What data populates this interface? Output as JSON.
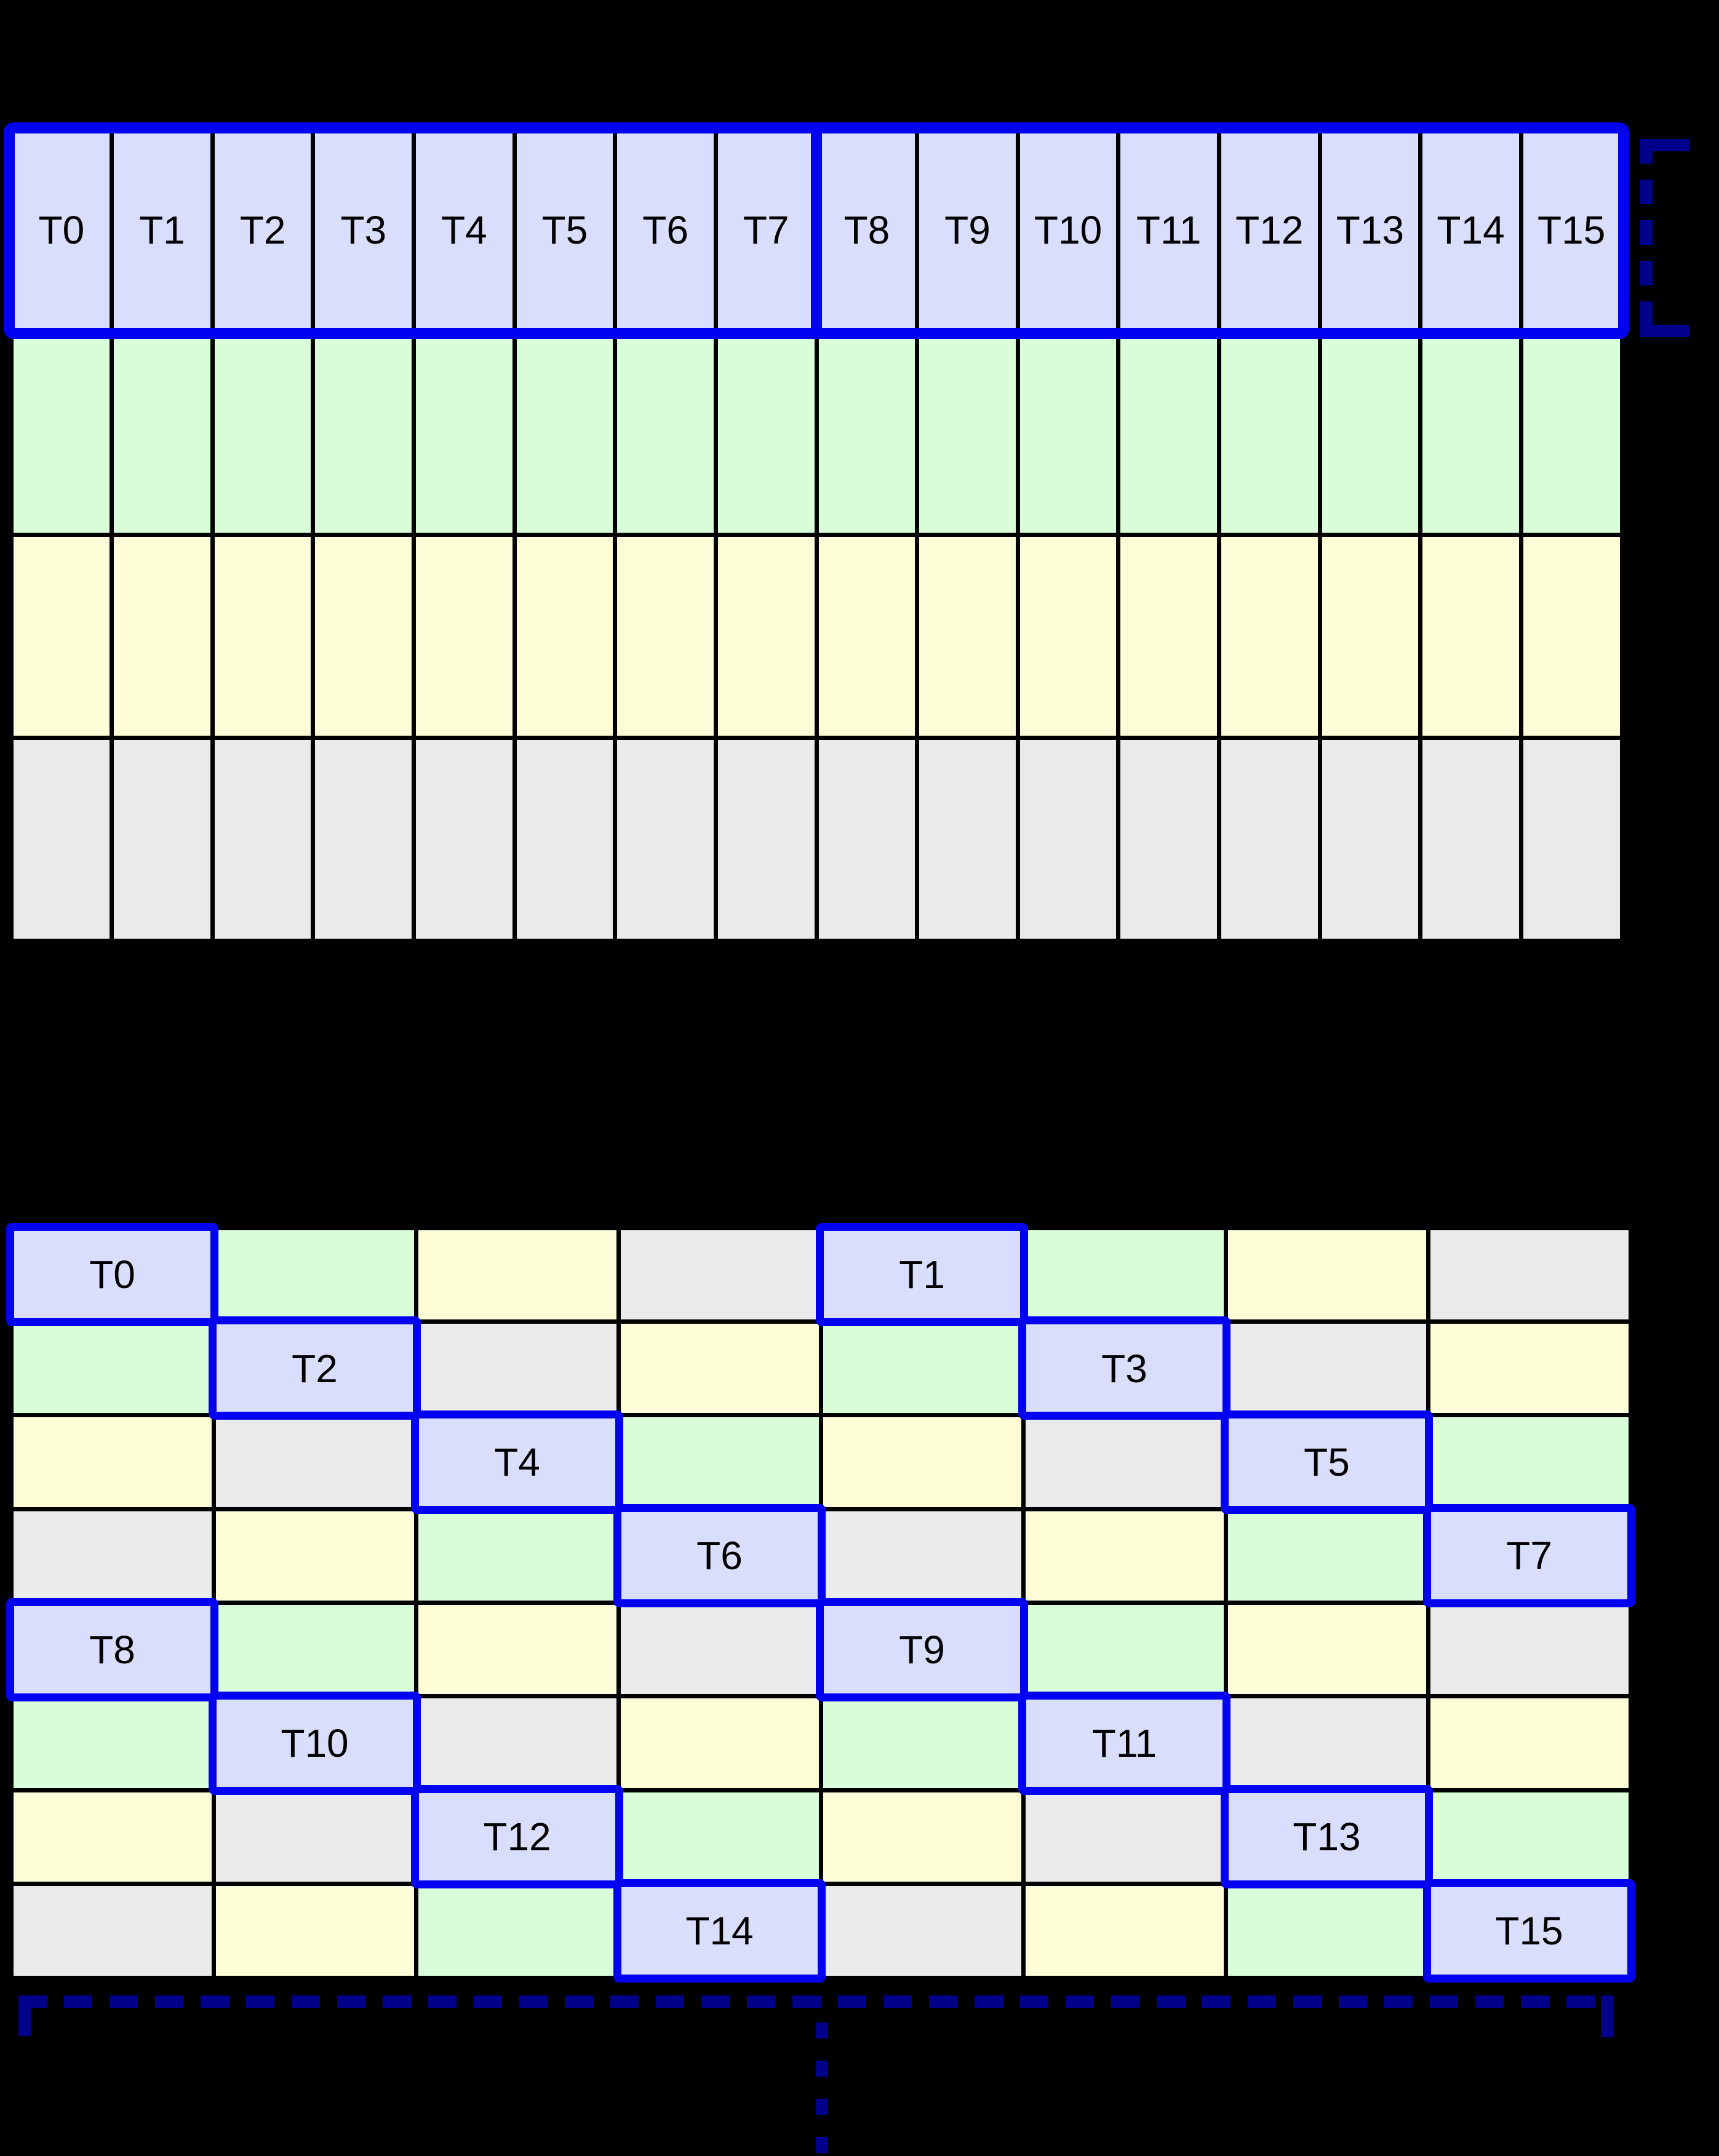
{
  "colors": {
    "background": "#000000",
    "grid_line": "#000000",
    "highlight_border": "#0202f0",
    "bracket": "#00008b",
    "cell_thread": "#d8defb",
    "cell_green": "#d9fdd9",
    "cell_yellow": "#fcfcd6",
    "cell_gray": "#eaeaea",
    "label_color": "#000000"
  },
  "top_grid": {
    "columns": 16,
    "rows": 4,
    "thread_labels": [
      "T0",
      "T1",
      "T2",
      "T3",
      "T4",
      "T5",
      "T6",
      "T7",
      "T8",
      "T9",
      "T10",
      "T11",
      "T12",
      "T13",
      "T14",
      "T15"
    ],
    "row_fills": [
      "thread",
      "green",
      "yellow",
      "gray"
    ],
    "highlighted_row": 0,
    "half_warp_divider_after_column": 8
  },
  "bottom_grid": {
    "columns": 8,
    "rows": 8,
    "fill_rows": [
      [
        "thread",
        "green",
        "yellow",
        "gray",
        "thread",
        "green",
        "yellow",
        "gray"
      ],
      [
        "green",
        "thread",
        "gray",
        "yellow",
        "green",
        "thread",
        "gray",
        "yellow"
      ],
      [
        "yellow",
        "gray",
        "thread",
        "green",
        "yellow",
        "gray",
        "thread",
        "green"
      ],
      [
        "gray",
        "yellow",
        "green",
        "thread",
        "gray",
        "yellow",
        "green",
        "thread"
      ],
      [
        "thread",
        "green",
        "yellow",
        "gray",
        "thread",
        "green",
        "yellow",
        "gray"
      ],
      [
        "green",
        "thread",
        "gray",
        "yellow",
        "green",
        "thread",
        "gray",
        "yellow"
      ],
      [
        "yellow",
        "gray",
        "thread",
        "green",
        "yellow",
        "gray",
        "thread",
        "green"
      ],
      [
        "gray",
        "yellow",
        "green",
        "thread",
        "gray",
        "yellow",
        "green",
        "thread"
      ]
    ],
    "highlights": [
      {
        "row": 0,
        "col": 0,
        "label": "T0"
      },
      {
        "row": 0,
        "col": 4,
        "label": "T1"
      },
      {
        "row": 1,
        "col": 1,
        "label": "T2"
      },
      {
        "row": 1,
        "col": 5,
        "label": "T3"
      },
      {
        "row": 2,
        "col": 2,
        "label": "T4"
      },
      {
        "row": 2,
        "col": 6,
        "label": "T5"
      },
      {
        "row": 3,
        "col": 3,
        "label": "T6"
      },
      {
        "row": 3,
        "col": 7,
        "label": "T7"
      },
      {
        "row": 4,
        "col": 0,
        "label": "T8"
      },
      {
        "row": 4,
        "col": 4,
        "label": "T9"
      },
      {
        "row": 5,
        "col": 1,
        "label": "T10"
      },
      {
        "row": 5,
        "col": 5,
        "label": "T11"
      },
      {
        "row": 6,
        "col": 2,
        "label": "T12"
      },
      {
        "row": 6,
        "col": 6,
        "label": "T13"
      },
      {
        "row": 7,
        "col": 3,
        "label": "T14"
      },
      {
        "row": 7,
        "col": 7,
        "label": "T15"
      }
    ]
  },
  "annotations": {
    "right_bracket_icon": "dashed-half-bracket",
    "bottom_bracket_icon": "dashed-span-bracket",
    "continuation_icon": "vertical-ellipsis"
  }
}
